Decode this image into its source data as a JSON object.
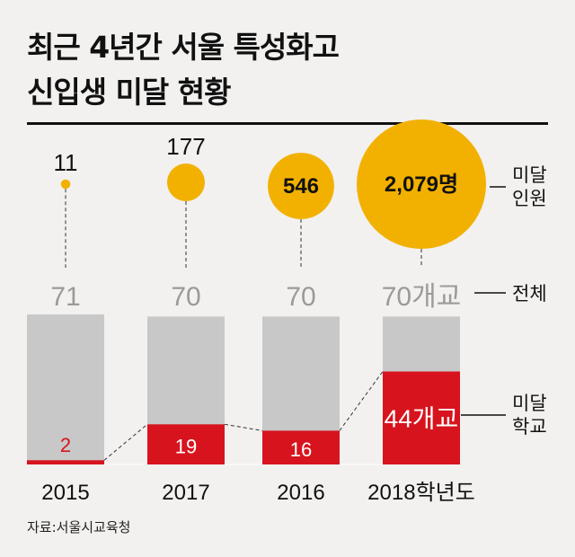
{
  "title_line1": "최근 4년간 서울 특성화고",
  "title_line2": "신입생 미달 현황",
  "source": "자료:서울시교육청",
  "colors": {
    "circle": "#f2b100",
    "bar_total": "#c8c8c8",
    "bar_short": "#d7141e",
    "text_gray": "#9a9a9a"
  },
  "chart_data": {
    "type": "bar",
    "categories": [
      "2015",
      "2017",
      "2016",
      "2018학년도"
    ],
    "series": [
      {
        "name": "전체",
        "values": [
          71,
          70,
          70,
          70
        ]
      },
      {
        "name": "미달 학교",
        "values": [
          2,
          19,
          16,
          44
        ]
      },
      {
        "name": "미달 인원",
        "values": [
          11,
          177,
          546,
          2079
        ]
      }
    ],
    "value_labels": {
      "total": [
        "71",
        "70",
        "70",
        "70개교"
      ],
      "short_schools": [
        "2",
        "19",
        "16",
        "44개교"
      ],
      "short_students": [
        "11",
        "177",
        "546",
        "2,079명"
      ]
    },
    "legend": {
      "short_students": [
        "미달",
        "인원"
      ],
      "total": [
        "전체"
      ],
      "short_schools": [
        "미달",
        "학교"
      ]
    }
  }
}
